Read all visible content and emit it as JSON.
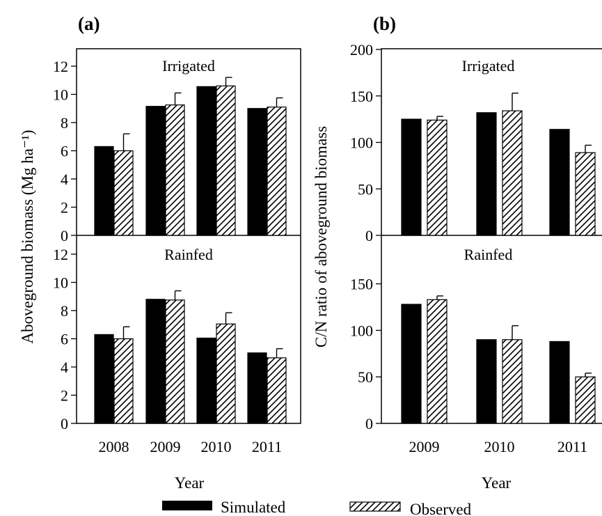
{
  "legend": [
    {
      "name": "Simulated",
      "style": "solid-black"
    },
    {
      "name": "Observed",
      "style": "hatched"
    }
  ],
  "colors": {
    "simulated": "#000000",
    "observed_hatch": "#000000",
    "background": "#ffffff"
  },
  "chart_data": [
    {
      "type": "bar",
      "panel_label": "(a)",
      "ylabel": "Aboveground biomass (Mg ha⁻¹)",
      "xlabel": "Year",
      "categories": [
        "2008",
        "2009",
        "2010",
        "2011"
      ],
      "subplots": [
        {
          "title": "Irrigated",
          "ylim": [
            0,
            13.5
          ],
          "yticks": [
            0,
            2,
            4,
            6,
            8,
            10,
            12
          ],
          "series": [
            {
              "name": "Simulated",
              "values": [
                6.3,
                9.15,
                10.55,
                9.0
              ],
              "errors": [
                0,
                0,
                0,
                0
              ]
            },
            {
              "name": "Observed",
              "values": [
                6.0,
                9.25,
                10.6,
                9.1
              ],
              "errors": [
                1.2,
                0.85,
                0.6,
                0.65
              ]
            }
          ]
        },
        {
          "title": "Rainfed",
          "ylim": [
            0,
            13.5
          ],
          "yticks": [
            0,
            2,
            4,
            6,
            8,
            10,
            12
          ],
          "series": [
            {
              "name": "Simulated",
              "values": [
                6.3,
                8.8,
                6.05,
                5.0
              ],
              "errors": [
                0,
                0,
                0,
                0
              ]
            },
            {
              "name": "Observed",
              "values": [
                6.0,
                8.75,
                7.05,
                4.65
              ],
              "errors": [
                0.85,
                0.65,
                0.8,
                0.65
              ]
            }
          ]
        }
      ]
    },
    {
      "type": "bar",
      "panel_label": "(b)",
      "ylabel": "C/N ratio of aboveground biomass",
      "xlabel": "Year",
      "categories": [
        "2009",
        "2010",
        "2011"
      ],
      "subplots": [
        {
          "title": "Irrigated",
          "ylim": [
            0,
            200
          ],
          "yticks": [
            0,
            50,
            100,
            150,
            200
          ],
          "series": [
            {
              "name": "Simulated",
              "values": [
                125,
                132,
                114
              ],
              "errors": [
                0,
                0,
                0
              ]
            },
            {
              "name": "Observed",
              "values": [
                124,
                134,
                89
              ],
              "errors": [
                4,
                19,
                8
              ]
            }
          ]
        },
        {
          "title": "Rainfed",
          "ylim": [
            0,
            200
          ],
          "yticks": [
            0,
            50,
            100,
            150
          ],
          "series": [
            {
              "name": "Simulated",
              "values": [
                128,
                90,
                88
              ],
              "errors": [
                0,
                0,
                0
              ]
            },
            {
              "name": "Observed",
              "values": [
                133,
                90,
                50
              ],
              "errors": [
                4,
                15,
                4
              ]
            }
          ]
        }
      ]
    }
  ]
}
